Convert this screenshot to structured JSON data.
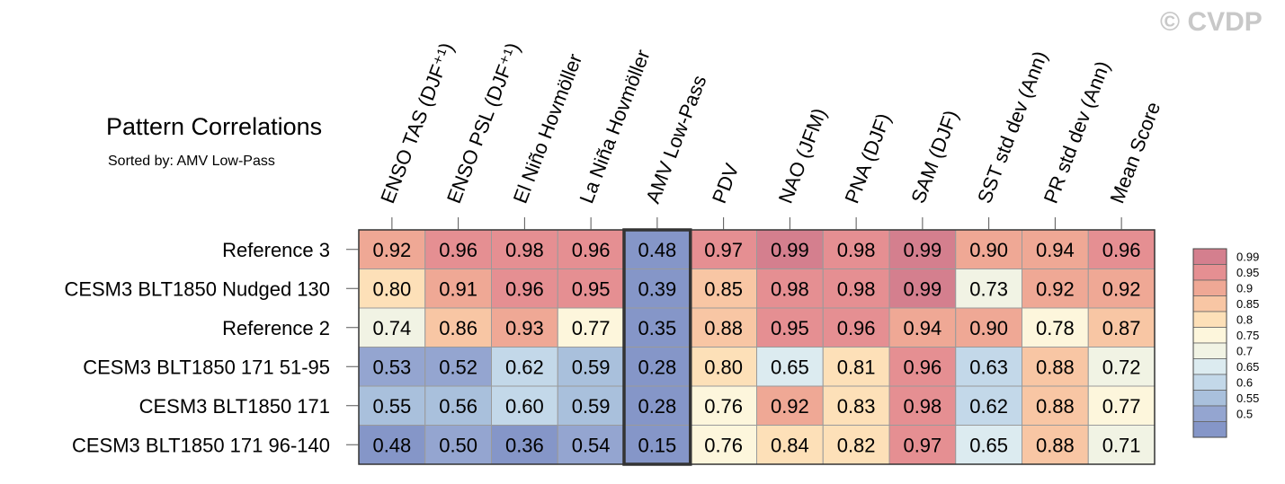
{
  "watermark": "© CVDP",
  "chart_data": {
    "type": "heatmap",
    "title": "Pattern Correlations",
    "subtitle": "Sorted by: AMV Low-Pass",
    "columns": [
      "ENSO TAS (DJF⁺¹)",
      "ENSO PSL (DJF⁺¹)",
      "El Niño Hovmöller",
      "La Niña Hovmöller",
      "AMV Low-Pass",
      "PDV",
      "NAO (JFM)",
      "PNA (DJF)",
      "SAM (DJF)",
      "SST std dev (Ann)",
      "PR std dev (Ann)",
      "Mean Score"
    ],
    "rows": [
      "Reference 3",
      "CESM3 BLT1850 Nudged 130",
      "Reference 2",
      "CESM3 BLT1850 171 51-95",
      "CESM3 BLT1850 171",
      "CESM3 BLT1850 171 96-140"
    ],
    "values": [
      [
        0.92,
        0.96,
        0.98,
        0.96,
        0.48,
        0.97,
        0.99,
        0.98,
        0.99,
        0.9,
        0.94,
        0.96
      ],
      [
        0.8,
        0.91,
        0.96,
        0.95,
        0.39,
        0.85,
        0.98,
        0.98,
        0.99,
        0.73,
        0.92,
        0.92
      ],
      [
        0.74,
        0.86,
        0.93,
        0.77,
        0.35,
        0.88,
        0.95,
        0.96,
        0.94,
        0.9,
        0.78,
        0.87
      ],
      [
        0.53,
        0.52,
        0.62,
        0.59,
        0.28,
        0.8,
        0.65,
        0.81,
        0.96,
        0.63,
        0.88,
        0.72
      ],
      [
        0.55,
        0.56,
        0.6,
        0.59,
        0.28,
        0.76,
        0.92,
        0.83,
        0.98,
        0.62,
        0.88,
        0.77
      ],
      [
        0.48,
        0.5,
        0.36,
        0.54,
        0.15,
        0.76,
        0.84,
        0.82,
        0.97,
        0.65,
        0.88,
        0.71
      ]
    ],
    "highlighted_column": "AMV Low-Pass",
    "colorbar": {
      "levels": [
        "0.99",
        "0.95",
        "0.9",
        "0.85",
        "0.8",
        "0.75",
        "0.7",
        "0.65",
        "0.6",
        "0.55",
        "0.5"
      ],
      "colors": [
        "#d47f8e",
        "#e58f92",
        "#efa895",
        "#f8c6a4",
        "#fde0b8",
        "#fdf6dc",
        "#f1f3e4",
        "#dcebf0",
        "#c3d8e9",
        "#a9c0dc",
        "#94a5d0",
        "#8596c8"
      ]
    }
  }
}
